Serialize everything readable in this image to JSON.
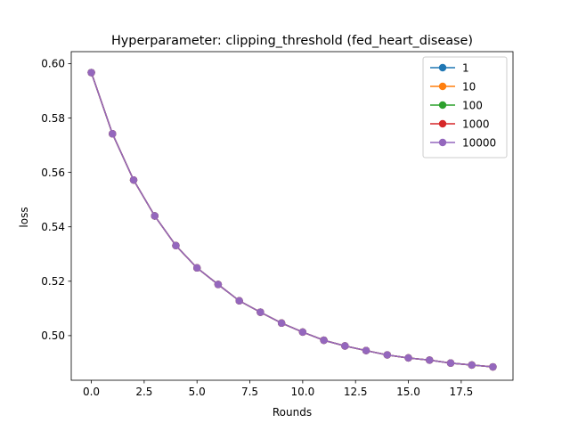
{
  "chart_data": {
    "type": "line",
    "title": "Hyperparameter: clipping_threshold (fed_heart_disease)",
    "xlabel": "Rounds",
    "ylabel": "loss",
    "xlim": [
      -0.95,
      19.95
    ],
    "ylim": [
      0.4836,
      0.6044
    ],
    "xticks": [
      0.0,
      2.5,
      5.0,
      7.5,
      10.0,
      12.5,
      15.0,
      17.5
    ],
    "xtick_labels": [
      "0.0",
      "2.5",
      "5.0",
      "7.5",
      "10.0",
      "12.5",
      "15.0",
      "17.5"
    ],
    "yticks": [
      0.5,
      0.52,
      0.54,
      0.56,
      0.58,
      0.6
    ],
    "ytick_labels": [
      "0.50",
      "0.52",
      "0.54",
      "0.56",
      "0.58",
      "0.60"
    ],
    "grid": false,
    "legend_position": "upper right",
    "marker": "circle",
    "x": [
      0,
      1,
      2,
      3,
      4,
      5,
      6,
      7,
      8,
      9,
      10,
      11,
      12,
      13,
      14,
      15,
      16,
      17,
      18,
      19
    ],
    "series": [
      {
        "name": "1",
        "color": "#1f77b4",
        "values": [
          0.5967,
          0.5742,
          0.5572,
          0.544,
          0.5331,
          0.5249,
          0.5188,
          0.5128,
          0.5086,
          0.5046,
          0.5013,
          0.4983,
          0.4962,
          0.4945,
          0.4929,
          0.4918,
          0.491,
          0.4899,
          0.4892,
          0.4885
        ]
      },
      {
        "name": "10",
        "color": "#ff7f0e",
        "values": [
          0.5967,
          0.5742,
          0.5572,
          0.544,
          0.5331,
          0.5249,
          0.5188,
          0.5128,
          0.5086,
          0.5046,
          0.5013,
          0.4983,
          0.4962,
          0.4945,
          0.4929,
          0.4918,
          0.491,
          0.4899,
          0.4892,
          0.4885
        ]
      },
      {
        "name": "100",
        "color": "#2ca02c",
        "values": [
          0.5967,
          0.5742,
          0.5572,
          0.544,
          0.5331,
          0.5249,
          0.5188,
          0.5128,
          0.5086,
          0.5046,
          0.5013,
          0.4983,
          0.4962,
          0.4945,
          0.4929,
          0.4918,
          0.491,
          0.4899,
          0.4892,
          0.4885
        ]
      },
      {
        "name": "1000",
        "color": "#d62728",
        "values": [
          0.5967,
          0.5742,
          0.5572,
          0.544,
          0.5331,
          0.5249,
          0.5188,
          0.5128,
          0.5086,
          0.5046,
          0.5013,
          0.4983,
          0.4962,
          0.4945,
          0.4929,
          0.4918,
          0.491,
          0.4899,
          0.4892,
          0.4885
        ]
      },
      {
        "name": "10000",
        "color": "#9467bd",
        "values": [
          0.5967,
          0.5742,
          0.5572,
          0.544,
          0.5331,
          0.5249,
          0.5188,
          0.5128,
          0.5086,
          0.5046,
          0.5013,
          0.4983,
          0.4962,
          0.4945,
          0.4929,
          0.4918,
          0.491,
          0.4899,
          0.4892,
          0.4885
        ]
      }
    ]
  }
}
